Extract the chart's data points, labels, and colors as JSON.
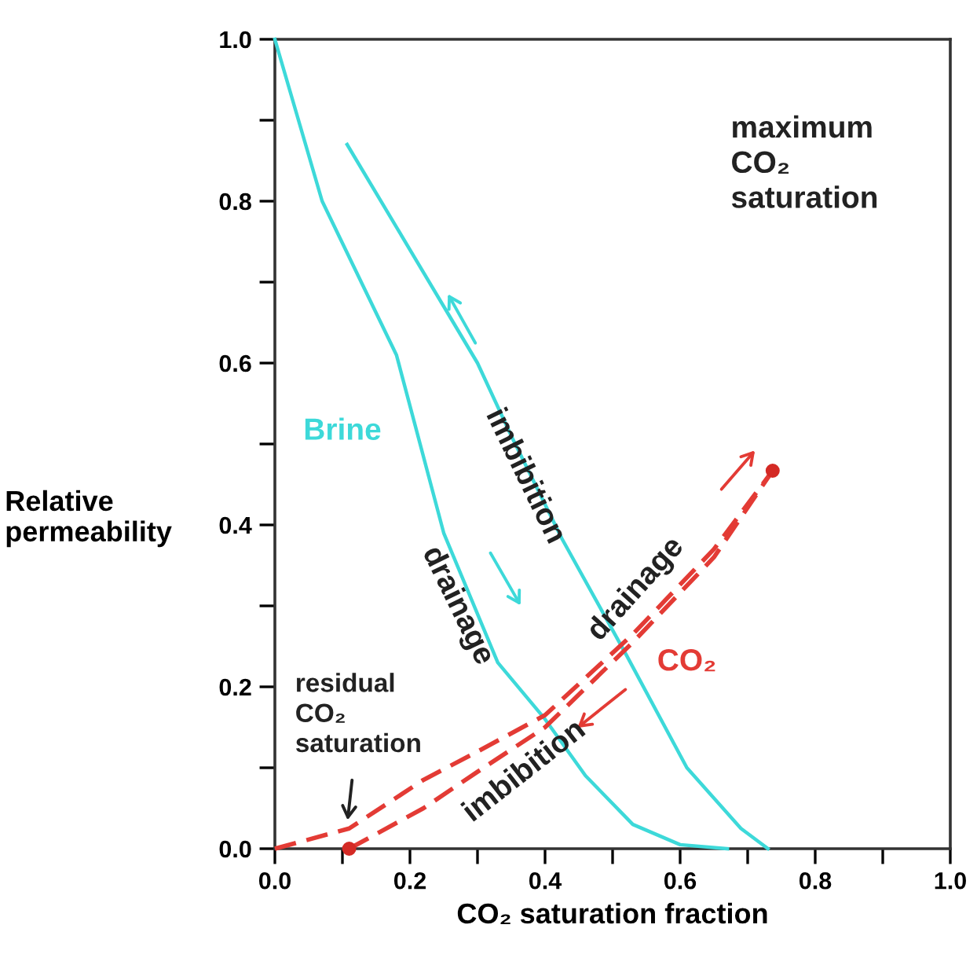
{
  "chart_data": {
    "type": "line",
    "xlabel": "CO₂ saturation fraction",
    "ylabel": "Relative\npermeability",
    "xlim": [
      0,
      1
    ],
    "ylim": [
      0,
      1
    ],
    "xticks": [
      {
        "value": 0,
        "label": "0.0"
      },
      {
        "value": 0.1,
        "label": null
      },
      {
        "value": 0.2,
        "label": "0.2"
      },
      {
        "value": 0.3,
        "label": null
      },
      {
        "value": 0.4,
        "label": "0.4"
      },
      {
        "value": 0.5,
        "label": null
      },
      {
        "value": 0.6,
        "label": "0.6"
      },
      {
        "value": 0.7,
        "label": null
      },
      {
        "value": 0.8,
        "label": "0.8"
      },
      {
        "value": 0.9,
        "label": null
      },
      {
        "value": 1,
        "label": "1.0"
      }
    ],
    "yticks": [
      {
        "value": 0,
        "label": "0.0"
      },
      {
        "value": 0.1,
        "label": null
      },
      {
        "value": 0.2,
        "label": "0.2"
      },
      {
        "value": 0.3,
        "label": null
      },
      {
        "value": 0.4,
        "label": "0.4"
      },
      {
        "value": 0.5,
        "label": null
      },
      {
        "value": 0.6,
        "label": "0.6"
      },
      {
        "value": 0.7,
        "label": null
      },
      {
        "value": 0.8,
        "label": "0.8"
      },
      {
        "value": 0.9,
        "label": null
      },
      {
        "value": 1,
        "label": "1.0"
      }
    ],
    "grid": false,
    "legend": false,
    "marker": "none",
    "series": [
      {
        "color": "#3dd9d9",
        "line_style": "solid",
        "x": [
          0,
          0.07,
          0.18,
          0.25,
          0.33,
          0.4,
          0.46,
          0.53,
          0.6,
          0.67
        ],
        "values": [
          1.0,
          0.8,
          0.61,
          0.39,
          0.23,
          0.16,
          0.09,
          0.03,
          0.005,
          0
        ]
      },
      {
        "color": "#3dd9d9",
        "line_style": "solid",
        "x": [
          0.107,
          0.2,
          0.3,
          0.35,
          0.425,
          0.52,
          0.61,
          0.69,
          0.73
        ],
        "values": [
          0.87,
          0.74,
          0.6,
          0.51,
          0.383,
          0.24,
          0.1,
          0.025,
          0
        ]
      },
      {
        "color": "#e33b35",
        "line_style": "dashed",
        "x": [
          0,
          0.11,
          0.22,
          0.3,
          0.4,
          0.53,
          0.65,
          0.737
        ],
        "values": [
          0,
          0.025,
          0.085,
          0.12,
          0.165,
          0.265,
          0.37,
          0.467
        ]
      },
      {
        "color": "#e33b35",
        "line_style": "dashed",
        "x": [
          0.11,
          0.22,
          0.3,
          0.4,
          0.53,
          0.65,
          0.737
        ],
        "values": [
          0,
          0.05,
          0.095,
          0.15,
          0.255,
          0.36,
          0.467
        ]
      },
      {
        "type": "scatter",
        "color": "#d42a25",
        "marker": "circle",
        "x": [
          0.11,
          0.737
        ],
        "values": [
          0,
          0.467
        ]
      }
    ],
    "annotations": [
      "Brine",
      "imbibition",
      "drainage",
      "drainage",
      "CO₂",
      "imbibition",
      "maximum\nCO₂\nsaturation",
      "residual\nCO₂\nsaturation"
    ]
  }
}
